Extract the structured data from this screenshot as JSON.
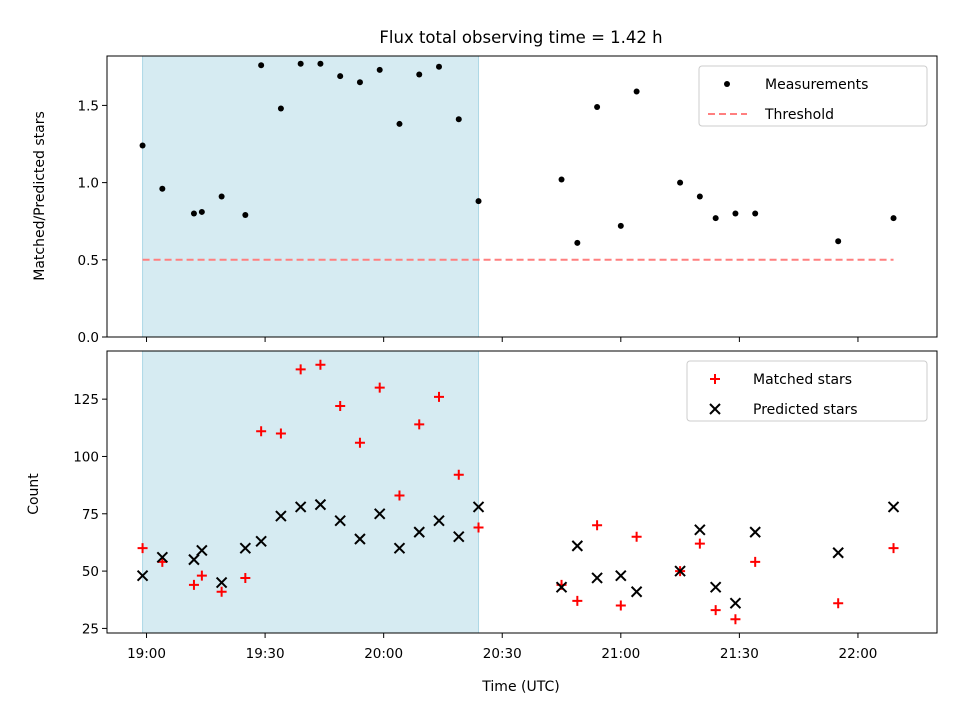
{
  "chart_data": {
    "type": "scatter",
    "title": "Flux total observing time = 1.42 h",
    "xlabel": "Time (UTC)",
    "x_ticks": [
      "19:00",
      "19:30",
      "20:00",
      "20:30",
      "21:00",
      "21:30",
      "22:00"
    ],
    "x_range": [
      "18:50",
      "22:20"
    ],
    "shaded_interval": {
      "start": "18:59",
      "end": "20:24",
      "color": "#add8e6"
    },
    "panels": [
      {
        "ylabel": "Matched/Predicted stars",
        "ylim": [
          0,
          1.82
        ],
        "y_ticks": [
          0.0,
          0.5,
          1.0,
          1.5
        ],
        "legend_position": "upper right",
        "series": [
          {
            "name": "Measurements",
            "marker": "dot",
            "color": "#000000",
            "points": [
              [
                "18:59",
                1.24
              ],
              [
                "19:04",
                0.96
              ],
              [
                "19:12",
                0.8
              ],
              [
                "19:14",
                0.81
              ],
              [
                "19:19",
                0.91
              ],
              [
                "19:25",
                0.79
              ],
              [
                "19:29",
                1.76
              ],
              [
                "19:34",
                1.48
              ],
              [
                "19:39",
                1.77
              ],
              [
                "19:44",
                1.77
              ],
              [
                "19:49",
                1.69
              ],
              [
                "19:54",
                1.65
              ],
              [
                "19:59",
                1.73
              ],
              [
                "20:04",
                1.38
              ],
              [
                "20:09",
                1.7
              ],
              [
                "20:14",
                1.75
              ],
              [
                "20:19",
                1.41
              ],
              [
                "20:24",
                0.88
              ],
              [
                "20:45",
                1.02
              ],
              [
                "20:49",
                0.61
              ],
              [
                "20:54",
                1.49
              ],
              [
                "21:00",
                0.72
              ],
              [
                "21:04",
                1.59
              ],
              [
                "21:15",
                1.0
              ],
              [
                "21:20",
                0.91
              ],
              [
                "21:24",
                0.77
              ],
              [
                "21:29",
                0.8
              ],
              [
                "21:34",
                0.8
              ],
              [
                "21:55",
                0.62
              ],
              [
                "22:09",
                0.77
              ]
            ]
          },
          {
            "name": "Threshold",
            "marker": "dashed-line",
            "color": "#ff7f7f",
            "value": 0.5,
            "x_from": "18:59",
            "x_to": "22:09"
          }
        ]
      },
      {
        "ylabel": "Count",
        "ylim": [
          23,
          146
        ],
        "y_ticks": [
          25,
          50,
          75,
          100,
          125
        ],
        "legend_position": "upper right",
        "series": [
          {
            "name": "Matched stars",
            "marker": "plus",
            "color": "#ff0000",
            "points": [
              [
                "18:59",
                60
              ],
              [
                "19:04",
                54
              ],
              [
                "19:12",
                44
              ],
              [
                "19:14",
                48
              ],
              [
                "19:19",
                41
              ],
              [
                "19:25",
                47
              ],
              [
                "19:29",
                111
              ],
              [
                "19:34",
                110
              ],
              [
                "19:39",
                138
              ],
              [
                "19:44",
                140
              ],
              [
                "19:49",
                122
              ],
              [
                "19:54",
                106
              ],
              [
                "19:59",
                130
              ],
              [
                "20:04",
                83
              ],
              [
                "20:09",
                114
              ],
              [
                "20:14",
                126
              ],
              [
                "20:19",
                92
              ],
              [
                "20:24",
                69
              ],
              [
                "20:45",
                44
              ],
              [
                "20:49",
                37
              ],
              [
                "20:54",
                70
              ],
              [
                "21:00",
                35
              ],
              [
                "21:04",
                65
              ],
              [
                "21:15",
                50
              ],
              [
                "21:20",
                62
              ],
              [
                "21:24",
                33
              ],
              [
                "21:29",
                29
              ],
              [
                "21:34",
                54
              ],
              [
                "21:55",
                36
              ],
              [
                "22:09",
                60
              ]
            ]
          },
          {
            "name": "Predicted stars",
            "marker": "x",
            "color": "#000000",
            "points": [
              [
                "18:59",
                48
              ],
              [
                "19:04",
                56
              ],
              [
                "19:12",
                55
              ],
              [
                "19:14",
                59
              ],
              [
                "19:19",
                45
              ],
              [
                "19:25",
                60
              ],
              [
                "19:29",
                63
              ],
              [
                "19:34",
                74
              ],
              [
                "19:39",
                78
              ],
              [
                "19:44",
                79
              ],
              [
                "19:49",
                72
              ],
              [
                "19:54",
                64
              ],
              [
                "19:59",
                75
              ],
              [
                "20:04",
                60
              ],
              [
                "20:09",
                67
              ],
              [
                "20:14",
                72
              ],
              [
                "20:19",
                65
              ],
              [
                "20:24",
                78
              ],
              [
                "20:45",
                43
              ],
              [
                "20:49",
                61
              ],
              [
                "20:54",
                47
              ],
              [
                "21:00",
                48
              ],
              [
                "21:04",
                41
              ],
              [
                "21:15",
                50
              ],
              [
                "21:20",
                68
              ],
              [
                "21:24",
                43
              ],
              [
                "21:29",
                36
              ],
              [
                "21:34",
                67
              ],
              [
                "21:55",
                58
              ],
              [
                "22:09",
                78
              ]
            ]
          }
        ]
      }
    ]
  }
}
